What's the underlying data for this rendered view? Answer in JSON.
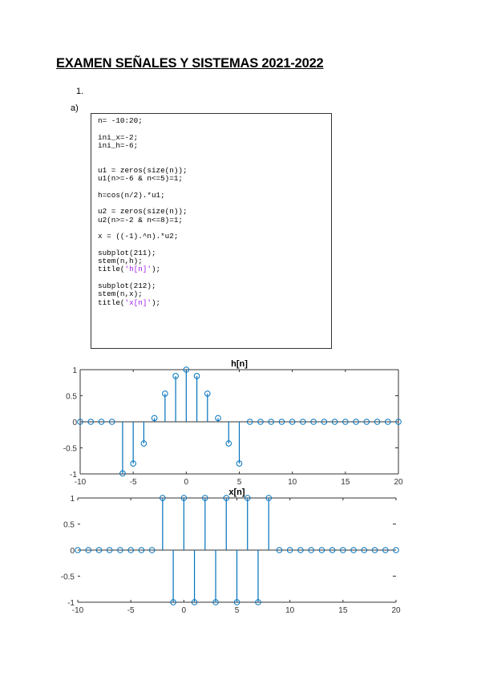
{
  "document": {
    "title": "EXAMEN SEÑALES Y SISTEMAS 2021-2022",
    "section_number": "1.",
    "subsection": "a)"
  },
  "code": {
    "lines": [
      [
        {
          "t": "n= -10:20;"
        }
      ],
      [],
      [
        {
          "t": "ini_x=-2;"
        }
      ],
      [
        {
          "t": "ini_h=-6;"
        }
      ],
      [],
      [],
      [
        {
          "t": "u1 = zeros(size(n));"
        }
      ],
      [
        {
          "t": "u1(n>=-6 & n<=5)=1;"
        }
      ],
      [],
      [
        {
          "t": "h=cos(n/2).*u1;"
        }
      ],
      [],
      [
        {
          "t": "u2 = zeros(size(n));"
        }
      ],
      [
        {
          "t": "u2(n>=-2 & n<=8)=1;"
        }
      ],
      [],
      [
        {
          "t": "x = ((-1).^n).*u2;"
        }
      ],
      [],
      [
        {
          "t": "subplot(211);"
        }
      ],
      [
        {
          "t": "stem(n,h);"
        }
      ],
      [
        {
          "t": "title("
        },
        {
          "t": "'h[n]'",
          "s": true
        },
        {
          "t": ");"
        }
      ],
      [],
      [
        {
          "t": "subplot(212);"
        }
      ],
      [
        {
          "t": "stem(n,x);"
        }
      ],
      [
        {
          "t": "title("
        },
        {
          "t": "'x[n]'",
          "s": true
        },
        {
          "t": ");"
        }
      ]
    ],
    "string_color": "#a020f0"
  },
  "chart_data": [
    {
      "type": "stem",
      "title": "h[n]",
      "x": [
        -10,
        -9,
        -8,
        -7,
        -6,
        -5,
        -4,
        -3,
        -2,
        -1,
        0,
        1,
        2,
        3,
        4,
        5,
        6,
        7,
        8,
        9,
        10,
        11,
        12,
        13,
        14,
        15,
        16,
        17,
        18,
        19,
        20
      ],
      "values": [
        0,
        0,
        0,
        0,
        -0.99,
        -0.801,
        -0.416,
        0.071,
        0.54,
        0.878,
        1,
        0.878,
        0.54,
        0.071,
        -0.416,
        -0.801,
        0,
        0,
        0,
        0,
        0,
        0,
        0,
        0,
        0,
        0,
        0,
        0,
        0,
        0,
        0
      ],
      "xlim": [
        -10,
        20
      ],
      "ylim": [
        -1,
        1
      ],
      "xticks": [
        "-10",
        "-5",
        "0",
        "5",
        "10",
        "15",
        "20"
      ],
      "yticks": [
        "-1",
        "-0.5",
        "0",
        "0.5",
        "1"
      ],
      "color": "#0072bd"
    },
    {
      "type": "stem",
      "title": "x[n]",
      "x": [
        -10,
        -9,
        -8,
        -7,
        -6,
        -5,
        -4,
        -3,
        -2,
        -1,
        0,
        1,
        2,
        3,
        4,
        5,
        6,
        7,
        8,
        9,
        10,
        11,
        12,
        13,
        14,
        15,
        16,
        17,
        18,
        19,
        20
      ],
      "values": [
        0,
        0,
        0,
        0,
        0,
        0,
        0,
        0,
        1,
        -1,
        1,
        -1,
        1,
        -1,
        1,
        -1,
        1,
        -1,
        1,
        0,
        0,
        0,
        0,
        0,
        0,
        0,
        0,
        0,
        0,
        0,
        0
      ],
      "xlim": [
        -10,
        20
      ],
      "ylim": [
        -1,
        1
      ],
      "xticks": [
        "-10",
        "-5",
        "0",
        "5",
        "10",
        "15",
        "20"
      ],
      "yticks": [
        "-1",
        "-0.5",
        "0",
        "0.5",
        "1"
      ],
      "color": "#0072bd"
    }
  ]
}
